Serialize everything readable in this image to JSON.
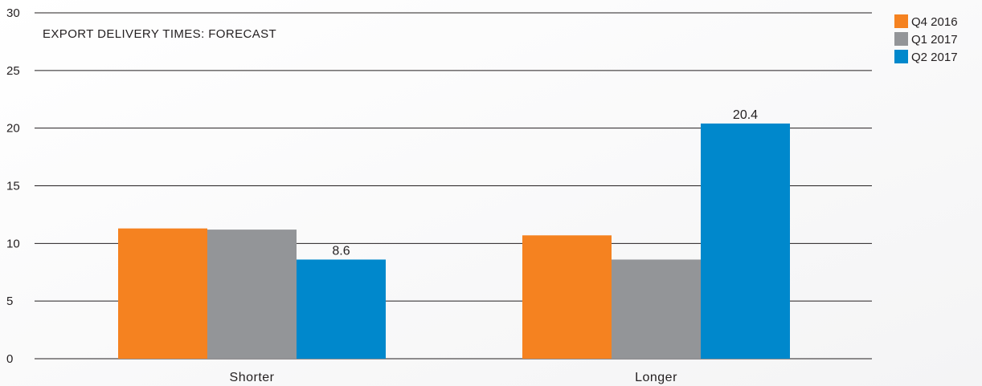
{
  "chart_data": {
    "type": "bar",
    "title": "EXPORT DELIVERY TIMES: FORECAST",
    "categories": [
      "Shorter",
      "Longer"
    ],
    "series": [
      {
        "name": "Q4 2016",
        "color": "#f58220",
        "values": [
          11.3,
          10.7
        ]
      },
      {
        "name": "Q1 2017",
        "color": "#939598",
        "values": [
          11.2,
          8.6
        ]
      },
      {
        "name": "Q2 2017",
        "color": "#0088cc",
        "values": [
          8.6,
          20.4
        ]
      }
    ],
    "data_labels": [
      {
        "series": 2,
        "category": 0,
        "text": "8.6"
      },
      {
        "series": 2,
        "category": 1,
        "text": "20.4"
      }
    ],
    "ylim": [
      0,
      30
    ],
    "yticks": [
      0,
      5,
      10,
      15,
      20,
      25,
      30
    ],
    "grid": true,
    "legend_position": "top-right"
  }
}
